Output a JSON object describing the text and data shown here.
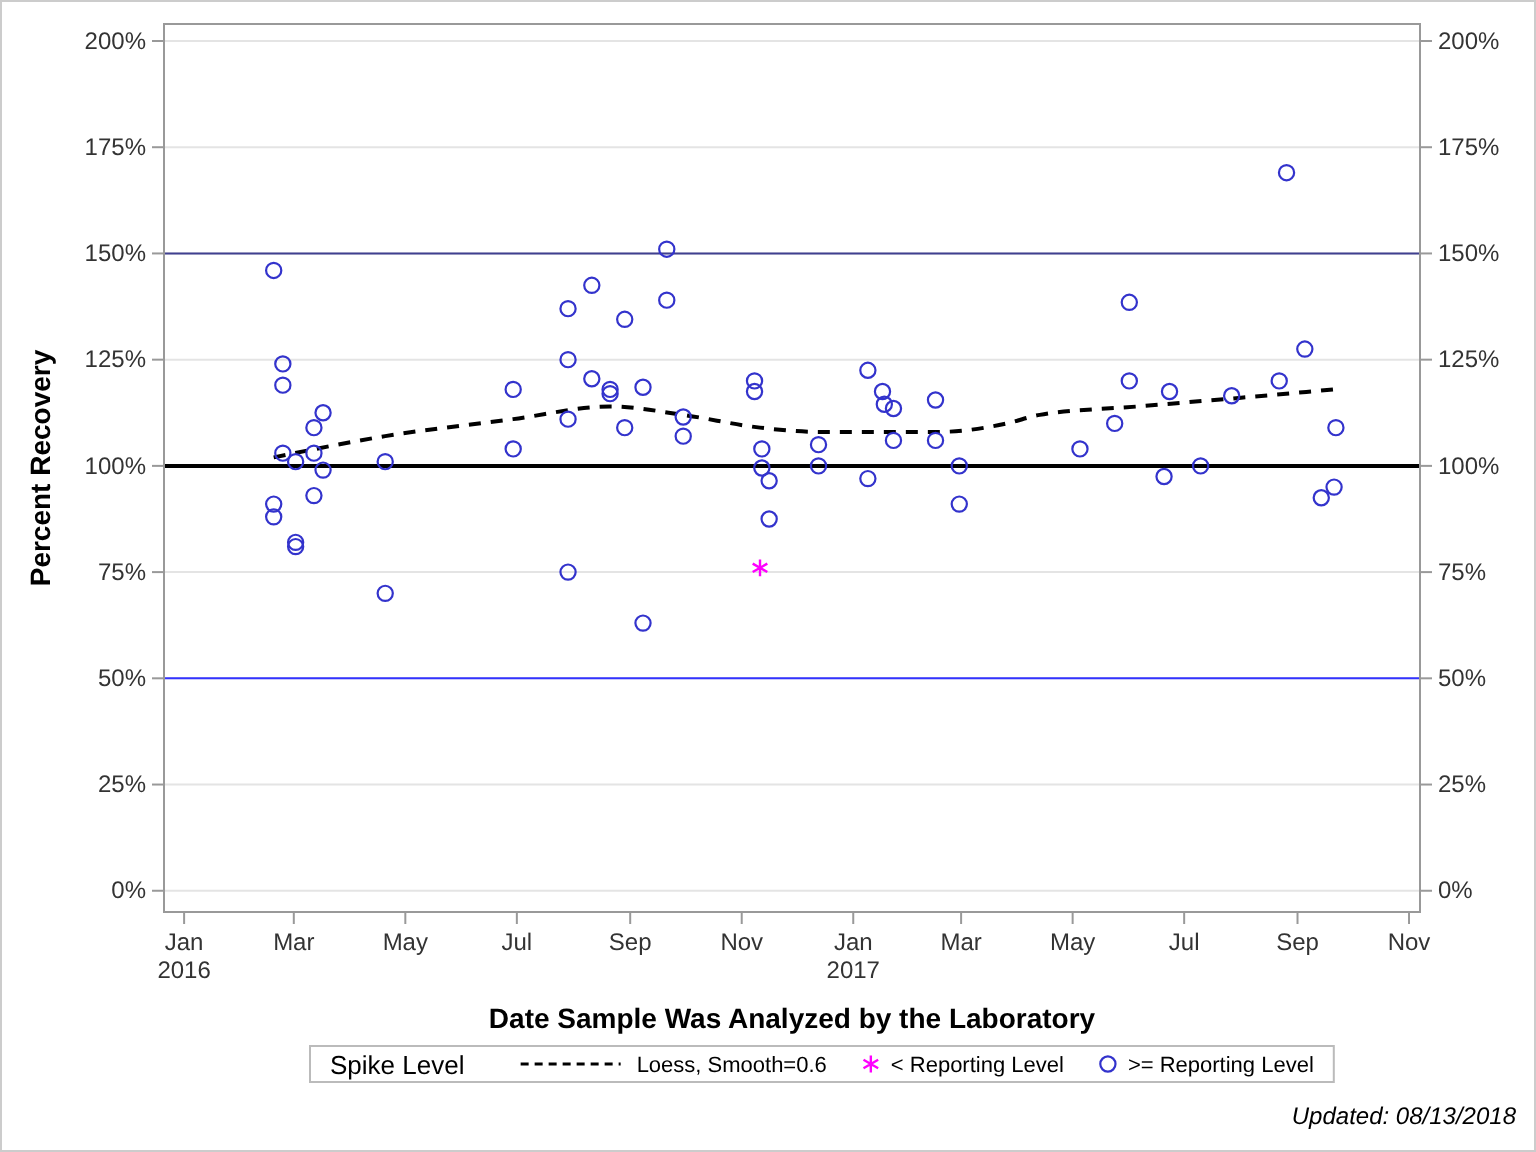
{
  "chart_data": {
    "type": "scatter",
    "xlabel": "Date Sample Was Analyzed by the Laboratory",
    "ylabel": "Percent Recovery",
    "legend_title": "Spike Level",
    "legend": "bottom",
    "grid": "y",
    "xlim": [
      "2015-12-21",
      "2017-11-07"
    ],
    "xticks": [
      {
        "value": "2016-01-01",
        "label": "Jan 2016"
      },
      {
        "value": "2016-03-01",
        "label": "Mar"
      },
      {
        "value": "2016-05-01",
        "label": "May"
      },
      {
        "value": "2016-07-01",
        "label": "Jul"
      },
      {
        "value": "2016-09-01",
        "label": "Sep"
      },
      {
        "value": "2016-11-01",
        "label": "Nov"
      },
      {
        "value": "2017-01-01",
        "label": "Jan 2017"
      },
      {
        "value": "2017-03-01",
        "label": "Mar"
      },
      {
        "value": "2017-05-01",
        "label": "May"
      },
      {
        "value": "2017-07-01",
        "label": "Jul"
      },
      {
        "value": "2017-09-01",
        "label": "Sep"
      },
      {
        "value": "2017-11-01",
        "label": "Nov"
      }
    ],
    "ylim": [
      -5,
      204
    ],
    "yticks": [
      {
        "value": 0,
        "label": "0%"
      },
      {
        "value": 25,
        "label": "25%"
      },
      {
        "value": 50,
        "label": "50%"
      },
      {
        "value": 75,
        "label": "75%"
      },
      {
        "value": 100,
        "label": "100%"
      },
      {
        "value": 125,
        "label": "125%"
      },
      {
        "value": 150,
        "label": "150%"
      },
      {
        "value": 175,
        "label": "175%"
      },
      {
        "value": 200,
        "label": "200%"
      }
    ],
    "y2lim": [
      -5,
      204
    ],
    "y2ticks": [
      {
        "value": 0,
        "label": "0%"
      },
      {
        "value": 25,
        "label": "25%"
      },
      {
        "value": 50,
        "label": "50%"
      },
      {
        "value": 75,
        "label": "75%"
      },
      {
        "value": 100,
        "label": "100%"
      },
      {
        "value": 125,
        "label": "125%"
      },
      {
        "value": 150,
        "label": "150%"
      },
      {
        "value": 175,
        "label": "175%"
      },
      {
        "value": 200,
        "label": "200%"
      }
    ],
    "ref_lines": [
      {
        "axis": "y",
        "value": 150,
        "color": "#404090"
      },
      {
        "axis": "y",
        "value": 100,
        "color": "#000000"
      },
      {
        "axis": "y",
        "value": 50,
        "color": "#3333ff"
      }
    ],
    "series": [
      {
        "name": "Loess, Smooth=0.6",
        "type": "line",
        "color": "#000000",
        "line_style": "dashed",
        "marker": "none",
        "x": [
          "2016-02-19",
          "2016-04-20",
          "2016-06-29",
          "2016-08-21",
          "2016-09-30",
          "2016-11-11",
          "2016-12-13",
          "2016-12-25",
          "2017-02-03",
          "2017-02-17",
          "2017-03-26",
          "2017-04-13",
          "2017-06-06",
          "2017-07-31",
          "2017-09-21"
        ],
        "values": [
          102,
          107,
          111,
          114,
          112,
          109,
          108,
          108,
          108,
          108,
          110,
          112,
          114,
          116,
          118
        ]
      },
      {
        "name": "< Reporting Level",
        "color": "#ff00ff",
        "marker": "cross",
        "x": [
          "2016-11-11"
        ],
        "values": [
          76
        ]
      },
      {
        "name": ">= Reporting Level",
        "color": "#3333cc",
        "marker": "circle",
        "x": [
          "2016-02-19",
          "2016-02-19",
          "2016-02-19",
          "2016-02-24",
          "2016-02-24",
          "2016-02-24",
          "2016-03-02",
          "2016-03-02",
          "2016-03-02",
          "2016-03-12",
          "2016-03-12",
          "2016-03-12",
          "2016-03-17",
          "2016-03-17",
          "2016-04-20",
          "2016-04-20",
          "2016-06-29",
          "2016-06-29",
          "2016-07-29",
          "2016-07-29",
          "2016-07-29",
          "2016-07-29",
          "2016-08-11",
          "2016-08-11",
          "2016-08-21",
          "2016-08-21",
          "2016-08-29",
          "2016-08-29",
          "2016-09-08",
          "2016-09-08",
          "2016-09-21",
          "2016-09-21",
          "2016-09-30",
          "2016-09-30",
          "2016-11-08",
          "2016-11-08",
          "2016-11-12",
          "2016-11-12",
          "2016-11-16",
          "2016-11-16",
          "2016-12-13",
          "2016-12-13",
          "2017-01-09",
          "2017-01-09",
          "2017-01-17",
          "2017-01-18",
          "2017-01-23",
          "2017-01-23",
          "2017-02-15",
          "2017-02-15",
          "2017-02-28",
          "2017-02-28",
          "2017-05-05",
          "2017-05-24",
          "2017-06-01",
          "2017-06-01",
          "2017-06-20",
          "2017-06-23",
          "2017-07-10",
          "2017-07-27",
          "2017-08-22",
          "2017-08-26",
          "2017-09-05",
          "2017-09-14",
          "2017-09-21",
          "2017-09-22"
        ],
        "values": [
          146,
          91,
          88,
          124,
          119,
          103,
          101,
          82,
          81,
          109,
          103,
          93,
          112.5,
          99,
          101,
          70,
          118,
          104,
          137,
          125,
          111,
          75,
          142.5,
          120.5,
          118,
          117,
          134.5,
          109,
          118.5,
          63,
          151,
          139,
          111.5,
          107,
          120,
          117.5,
          104,
          99.5,
          96.5,
          87.5,
          105,
          100,
          97,
          122.5,
          117.5,
          114.5,
          113.5,
          106,
          115.5,
          106,
          100,
          91,
          104,
          110,
          138.5,
          120,
          97.5,
          117.5,
          100,
          116.5,
          120,
          169,
          127.5,
          92.5,
          95,
          109
        ]
      }
    ],
    "annotations": [
      "Updated: 08/13/2018"
    ]
  }
}
